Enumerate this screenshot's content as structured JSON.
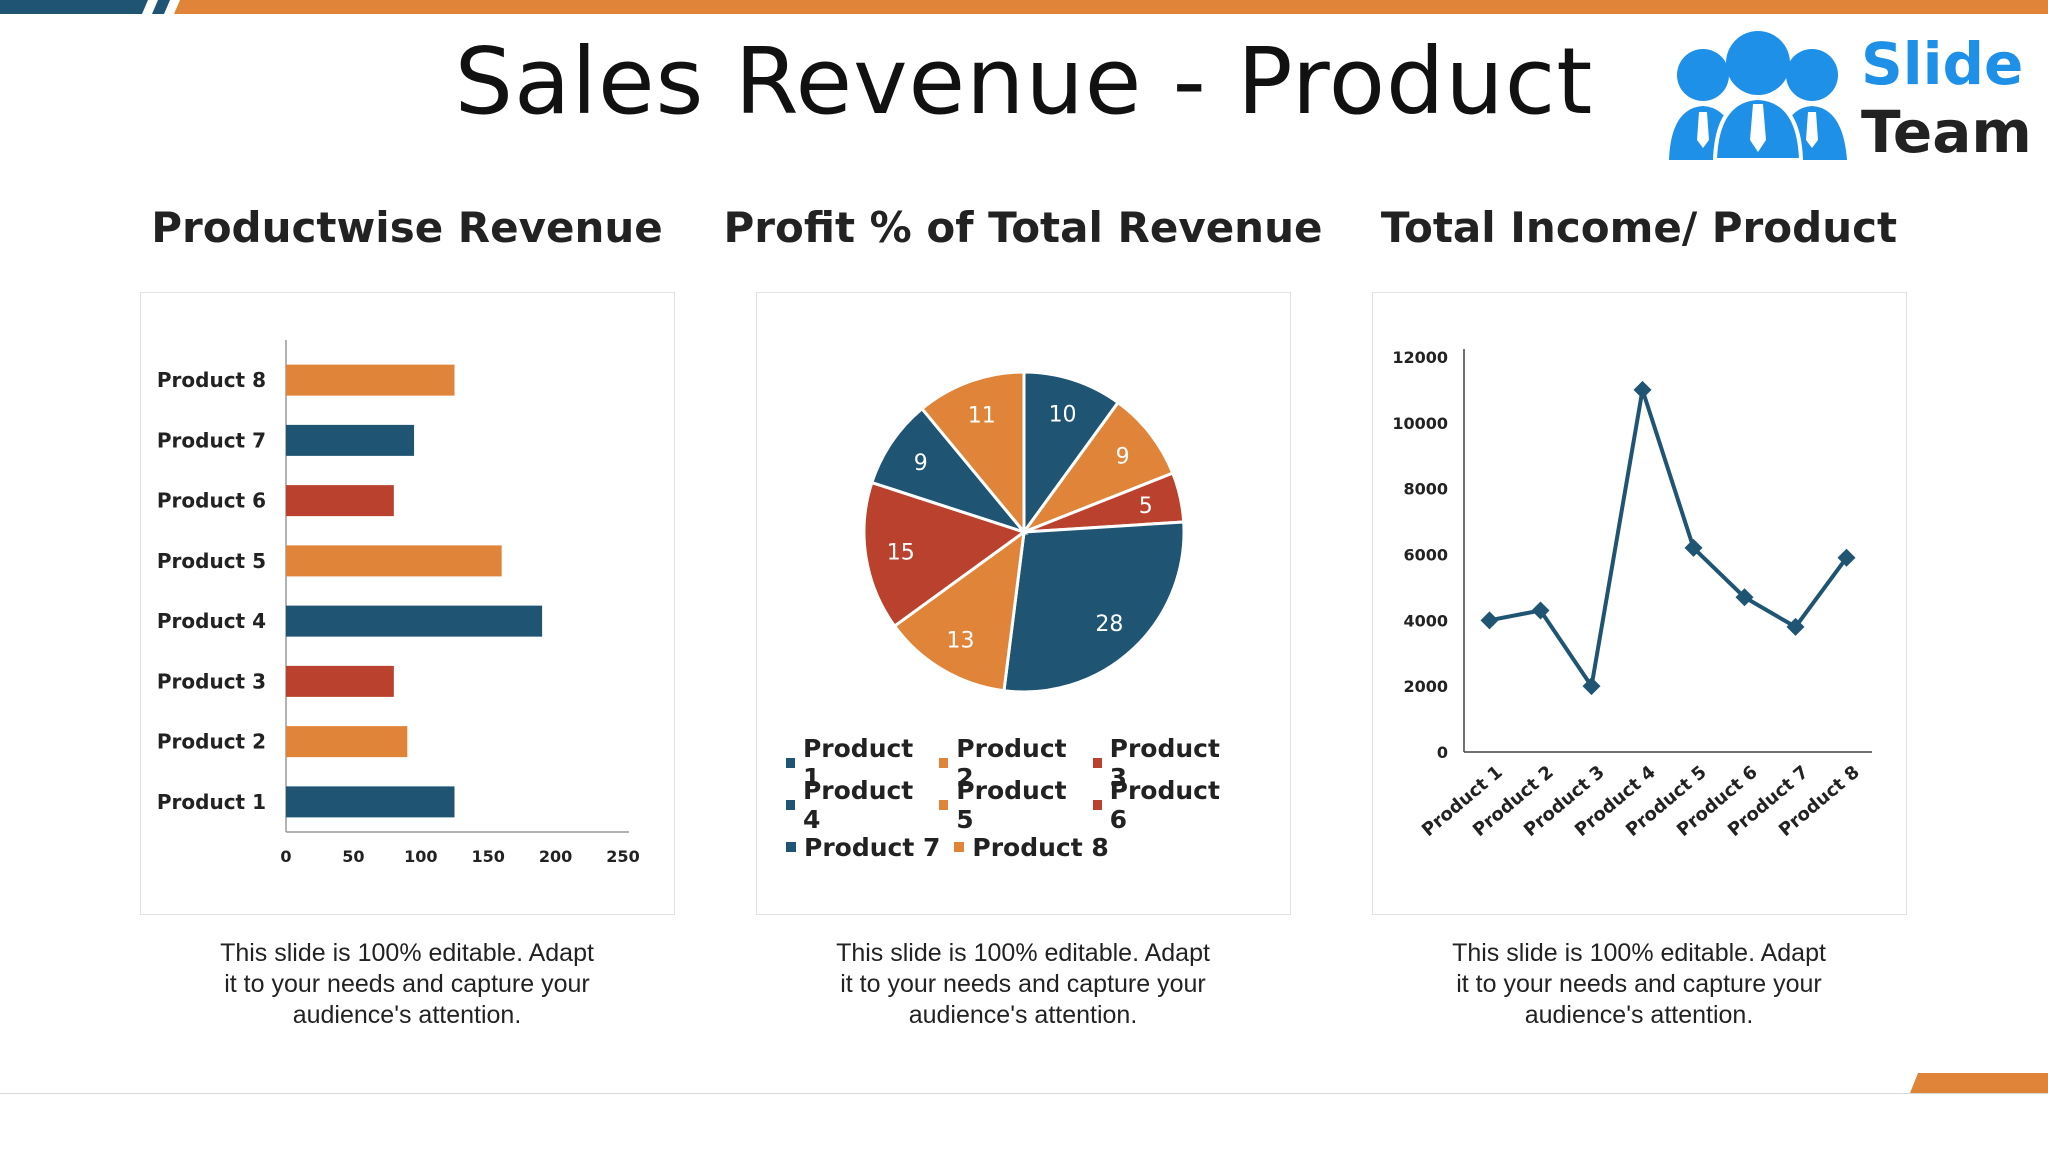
{
  "title": "Sales Revenue - Product",
  "logo": {
    "line1": "Slide",
    "line2": "Team",
    "icon": "people-group-icon"
  },
  "colors": {
    "navy": "#1f5573",
    "orange": "#e0843a",
    "red": "#b9412d",
    "blue": "#1e90e8"
  },
  "caption": "This slide is 100% editable. Adapt it to your needs and capture your audience's attention.",
  "caption_lines": [
    "This slide is 100% editable. Adapt",
    "it to your needs and capture your",
    "audience's attention."
  ],
  "chart_data": [
    {
      "type": "bar",
      "title": "Productwise Revenue",
      "orientation": "horizontal",
      "categories": [
        "Product 1",
        "Product 2",
        "Product 3",
        "Product 4",
        "Product 5",
        "Product 6",
        "Product 7",
        "Product 8"
      ],
      "values": [
        125,
        90,
        80,
        190,
        160,
        80,
        95,
        125
      ],
      "bar_colors": [
        "#1f5573",
        "#e0843a",
        "#b9412d",
        "#1f5573",
        "#e0843a",
        "#b9412d",
        "#1f5573",
        "#e0843a"
      ],
      "xlim": [
        0,
        250
      ],
      "xticks": [
        "0",
        "50",
        "100",
        "150",
        "200",
        "250"
      ]
    },
    {
      "type": "pie",
      "title": "Profit % of Total Revenue",
      "categories": [
        "Product 1",
        "Product 2",
        "Product 3",
        "Product 4",
        "Product 5",
        "Product 6",
        "Product 7",
        "Product 8"
      ],
      "slices": [
        {
          "label": "10",
          "value": 10,
          "color": "#1f5573"
        },
        {
          "label": "9",
          "value": 9,
          "color": "#e0843a"
        },
        {
          "label": "5",
          "value": 5,
          "color": "#b9412d"
        },
        {
          "label": "28",
          "value": 28,
          "color": "#1f5573"
        },
        {
          "label": "13",
          "value": 13,
          "color": "#e0843a"
        },
        {
          "label": "15",
          "value": 15,
          "color": "#b9412d"
        },
        {
          "label": "9",
          "value": 9,
          "color": "#1f5573"
        },
        {
          "label": "11",
          "value": 11,
          "color": "#e0843a"
        }
      ],
      "legend": [
        {
          "label": "Product 1",
          "color": "#1f5573"
        },
        {
          "label": "Product 2",
          "color": "#e0843a"
        },
        {
          "label": "Product 3",
          "color": "#b9412d"
        },
        {
          "label": "Product 4",
          "color": "#1f5573"
        },
        {
          "label": "Product 5",
          "color": "#e0843a"
        },
        {
          "label": "Product 6",
          "color": "#b9412d"
        },
        {
          "label": "Product 7",
          "color": "#1f5573"
        },
        {
          "label": "Product 8",
          "color": "#e0843a"
        }
      ],
      "legend_placement": "bottom"
    },
    {
      "type": "line",
      "title": "Total Income/ Product",
      "categories": [
        "Product 1",
        "Product 2",
        "Product 3",
        "Product 4",
        "Product 5",
        "Product 6",
        "Product 7",
        "Product 8"
      ],
      "values": [
        4000,
        4300,
        2000,
        11000,
        6200,
        4700,
        3800,
        5900
      ],
      "ylim": [
        0,
        12000
      ],
      "yticks": [
        "0",
        "2000",
        "4000",
        "6000",
        "8000",
        "10000",
        "12000"
      ],
      "marker": "diamond",
      "color": "#1f5573"
    }
  ]
}
